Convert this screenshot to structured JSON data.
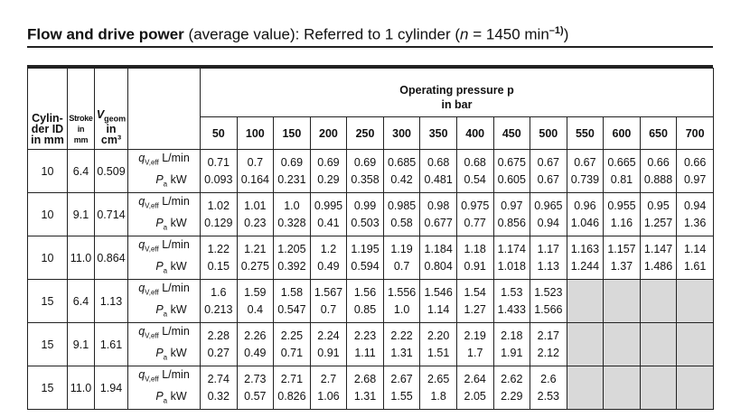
{
  "title": {
    "bold": "Flow and drive power",
    "rest": " (average value): Referred to 1 cylinder (",
    "n": "n",
    "eq": " = 1450 min",
    "sup": "–1)",
    "close": ")"
  },
  "header": {
    "cyl_id": [
      "Cylin-",
      "der ID",
      "in mm"
    ],
    "stroke": [
      "Stroke",
      "in",
      "mm"
    ],
    "vgeom": {
      "v": "V",
      "sub": "geom",
      "line2": "in",
      "line3": "cm³"
    },
    "op_line1": "Operating pressure p",
    "op_line2": "in bar",
    "pressures": [
      "50",
      "100",
      "150",
      "200",
      "250",
      "300",
      "350",
      "400",
      "450",
      "500",
      "550",
      "600",
      "650",
      "700"
    ]
  },
  "labels": {
    "q": "q",
    "q_sub": "V,eff",
    "q_unit": " L/min",
    "p": "P",
    "p_sub": "a",
    "p_unit": " kW"
  },
  "rows": [
    {
      "cyl": "10",
      "stroke": "6.4",
      "vgeom": "0.509",
      "q": [
        "0.71",
        "0.7",
        "0.69",
        "0.69",
        "0.69",
        "0.685",
        "0.68",
        "0.68",
        "0.675",
        "0.67",
        "0.67",
        "0.665",
        "0.66",
        "0.66"
      ],
      "p": [
        "0.093",
        "0.164",
        "0.231",
        "0.29",
        "0.358",
        "0.42",
        "0.481",
        "0.54",
        "0.605",
        "0.67",
        "0.739",
        "0.81",
        "0.888",
        "0.97"
      ]
    },
    {
      "cyl": "10",
      "stroke": "9.1",
      "vgeom": "0.714",
      "q": [
        "1.02",
        "1.01",
        "1.0",
        "0.995",
        "0.99",
        "0.985",
        "0.98",
        "0.975",
        "0.97",
        "0.965",
        "0.96",
        "0.955",
        "0.95",
        "0.94"
      ],
      "p": [
        "0.129",
        "0.23",
        "0.328",
        "0.41",
        "0.503",
        "0.58",
        "0.677",
        "0.77",
        "0.856",
        "0.94",
        "1.046",
        "1.16",
        "1.257",
        "1.36"
      ]
    },
    {
      "cyl": "10",
      "stroke": "11.0",
      "vgeom": "0.864",
      "q": [
        "1.22",
        "1.21",
        "1.205",
        "1.2",
        "1.195",
        "1.19",
        "1.184",
        "1.18",
        "1.174",
        "1.17",
        "1.163",
        "1.157",
        "1.147",
        "1.14"
      ],
      "p": [
        "0.15",
        "0.275",
        "0.392",
        "0.49",
        "0.594",
        "0.7",
        "0.804",
        "0.91",
        "1.018",
        "1.13",
        "1.244",
        "1.37",
        "1.486",
        "1.61"
      ]
    },
    {
      "cyl": "15",
      "stroke": "6.4",
      "vgeom": "1.13",
      "q": [
        "1.6",
        "1.59",
        "1.58",
        "1.567",
        "1.56",
        "1.556",
        "1.546",
        "1.54",
        "1.53",
        "1.523"
      ],
      "p": [
        "0.213",
        "0.4",
        "0.547",
        "0.7",
        "0.85",
        "1.0",
        "1.14",
        "1.27",
        "1.433",
        "1.566"
      ]
    },
    {
      "cyl": "15",
      "stroke": "9.1",
      "vgeom": "1.61",
      "q": [
        "2.28",
        "2.26",
        "2.25",
        "2.24",
        "2.23",
        "2.22",
        "2.20",
        "2.19",
        "2.18",
        "2.17"
      ],
      "p": [
        "0.27",
        "0.49",
        "0.71",
        "0.91",
        "1.11",
        "1.31",
        "1.51",
        "1.7",
        "1.91",
        "2.12"
      ]
    },
    {
      "cyl": "15",
      "stroke": "11.0",
      "vgeom": "1.94",
      "q": [
        "2.74",
        "2.73",
        "2.71",
        "2.7",
        "2.68",
        "2.67",
        "2.65",
        "2.64",
        "2.62",
        "2.6"
      ],
      "p": [
        "0.32",
        "0.57",
        "0.826",
        "1.06",
        "1.31",
        "1.55",
        "1.8",
        "2.05",
        "2.29",
        "2.53"
      ]
    }
  ]
}
